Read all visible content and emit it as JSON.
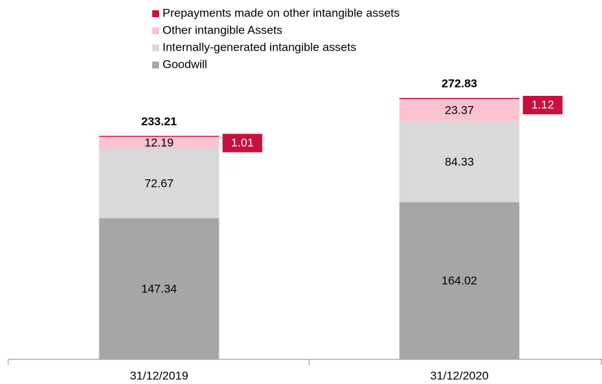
{
  "chart_data": {
    "type": "stacked-bar",
    "categories": [
      "31/12/2019",
      "31/12/2020"
    ],
    "series": [
      {
        "name": "Goodwill",
        "color": "#a6a6a6",
        "values": [
          147.34,
          164.02
        ]
      },
      {
        "name": "Internally-generated intangible assets",
        "color": "#d9d9d9",
        "values": [
          72.67,
          84.33
        ]
      },
      {
        "name": "Other intangible Assets",
        "color": "#f9c3d0",
        "values": [
          12.19,
          23.37
        ]
      },
      {
        "name": "Prepayments made on other intangible assets",
        "color": "#c8103e",
        "values": [
          1.01,
          1.12
        ]
      }
    ],
    "totals": [
      233.21,
      272.83
    ]
  }
}
